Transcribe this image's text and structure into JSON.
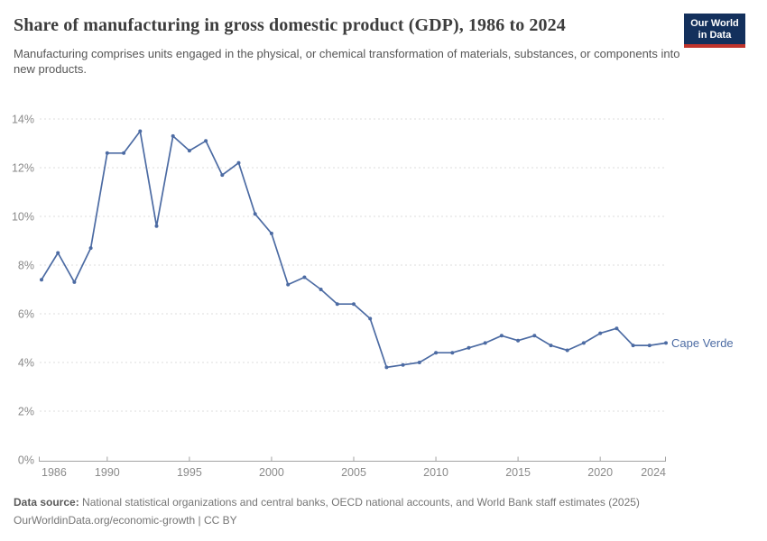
{
  "header": {
    "title": "Share of manufacturing in gross domestic product (GDP), 1986 to 2024",
    "subtitle": "Manufacturing comprises units engaged in the physical, or chemical transformation of materials, substances, or components into new products.",
    "logo": {
      "line1": "Our World",
      "line2": "in Data"
    }
  },
  "chart_data": {
    "type": "line",
    "title": "Share of manufacturing in gross domestic product (GDP), 1986 to 2024",
    "xlabel": "",
    "ylabel": "",
    "x": [
      1986,
      1987,
      1988,
      1989,
      1990,
      1991,
      1992,
      1993,
      1994,
      1995,
      1996,
      1997,
      1998,
      1999,
      2000,
      2001,
      2002,
      2003,
      2004,
      2005,
      2006,
      2007,
      2008,
      2009,
      2010,
      2011,
      2012,
      2013,
      2014,
      2015,
      2016,
      2017,
      2018,
      2019,
      2020,
      2021,
      2022,
      2023,
      2024
    ],
    "series": [
      {
        "name": "Cape Verde",
        "color": "#4c6ba3",
        "values": [
          7.4,
          8.5,
          7.3,
          8.7,
          12.6,
          12.6,
          13.5,
          9.6,
          13.3,
          12.7,
          13.1,
          11.7,
          12.2,
          10.1,
          9.3,
          7.2,
          7.5,
          7.0,
          6.4,
          6.4,
          5.8,
          3.8,
          3.9,
          4.0,
          4.4,
          4.4,
          4.6,
          4.8,
          5.1,
          4.9,
          5.1,
          4.7,
          4.5,
          4.8,
          5.2,
          5.4,
          4.7,
          4.7,
          4.8
        ]
      }
    ],
    "x_ticks": [
      1986,
      1990,
      1995,
      2000,
      2005,
      2010,
      2015,
      2020,
      2024
    ],
    "y_ticks": [
      0,
      2,
      4,
      6,
      8,
      10,
      12,
      14
    ],
    "y_unit": "%",
    "xlim": [
      1986,
      2024
    ],
    "ylim": [
      0,
      14
    ],
    "grid": "horizontal-dashed",
    "legend_position": "end-of-line-label",
    "end_label": "Cape Verde"
  },
  "footer": {
    "datasource_label": "Data source:",
    "datasource_text": "National statistical organizations and central banks, OECD national accounts, and World Bank staff estimates (2025)",
    "url_line": "OurWorldinData.org/economic-growth | CC BY"
  },
  "colors": {
    "line": "#4c6ba3",
    "grid": "#dddddd",
    "axis": "#a3a3a3",
    "tick_label": "#8a8a8a",
    "title": "#3d3d3d",
    "subtitle": "#565656",
    "logo_bg": "#13305c",
    "logo_bar": "#c0342c"
  }
}
